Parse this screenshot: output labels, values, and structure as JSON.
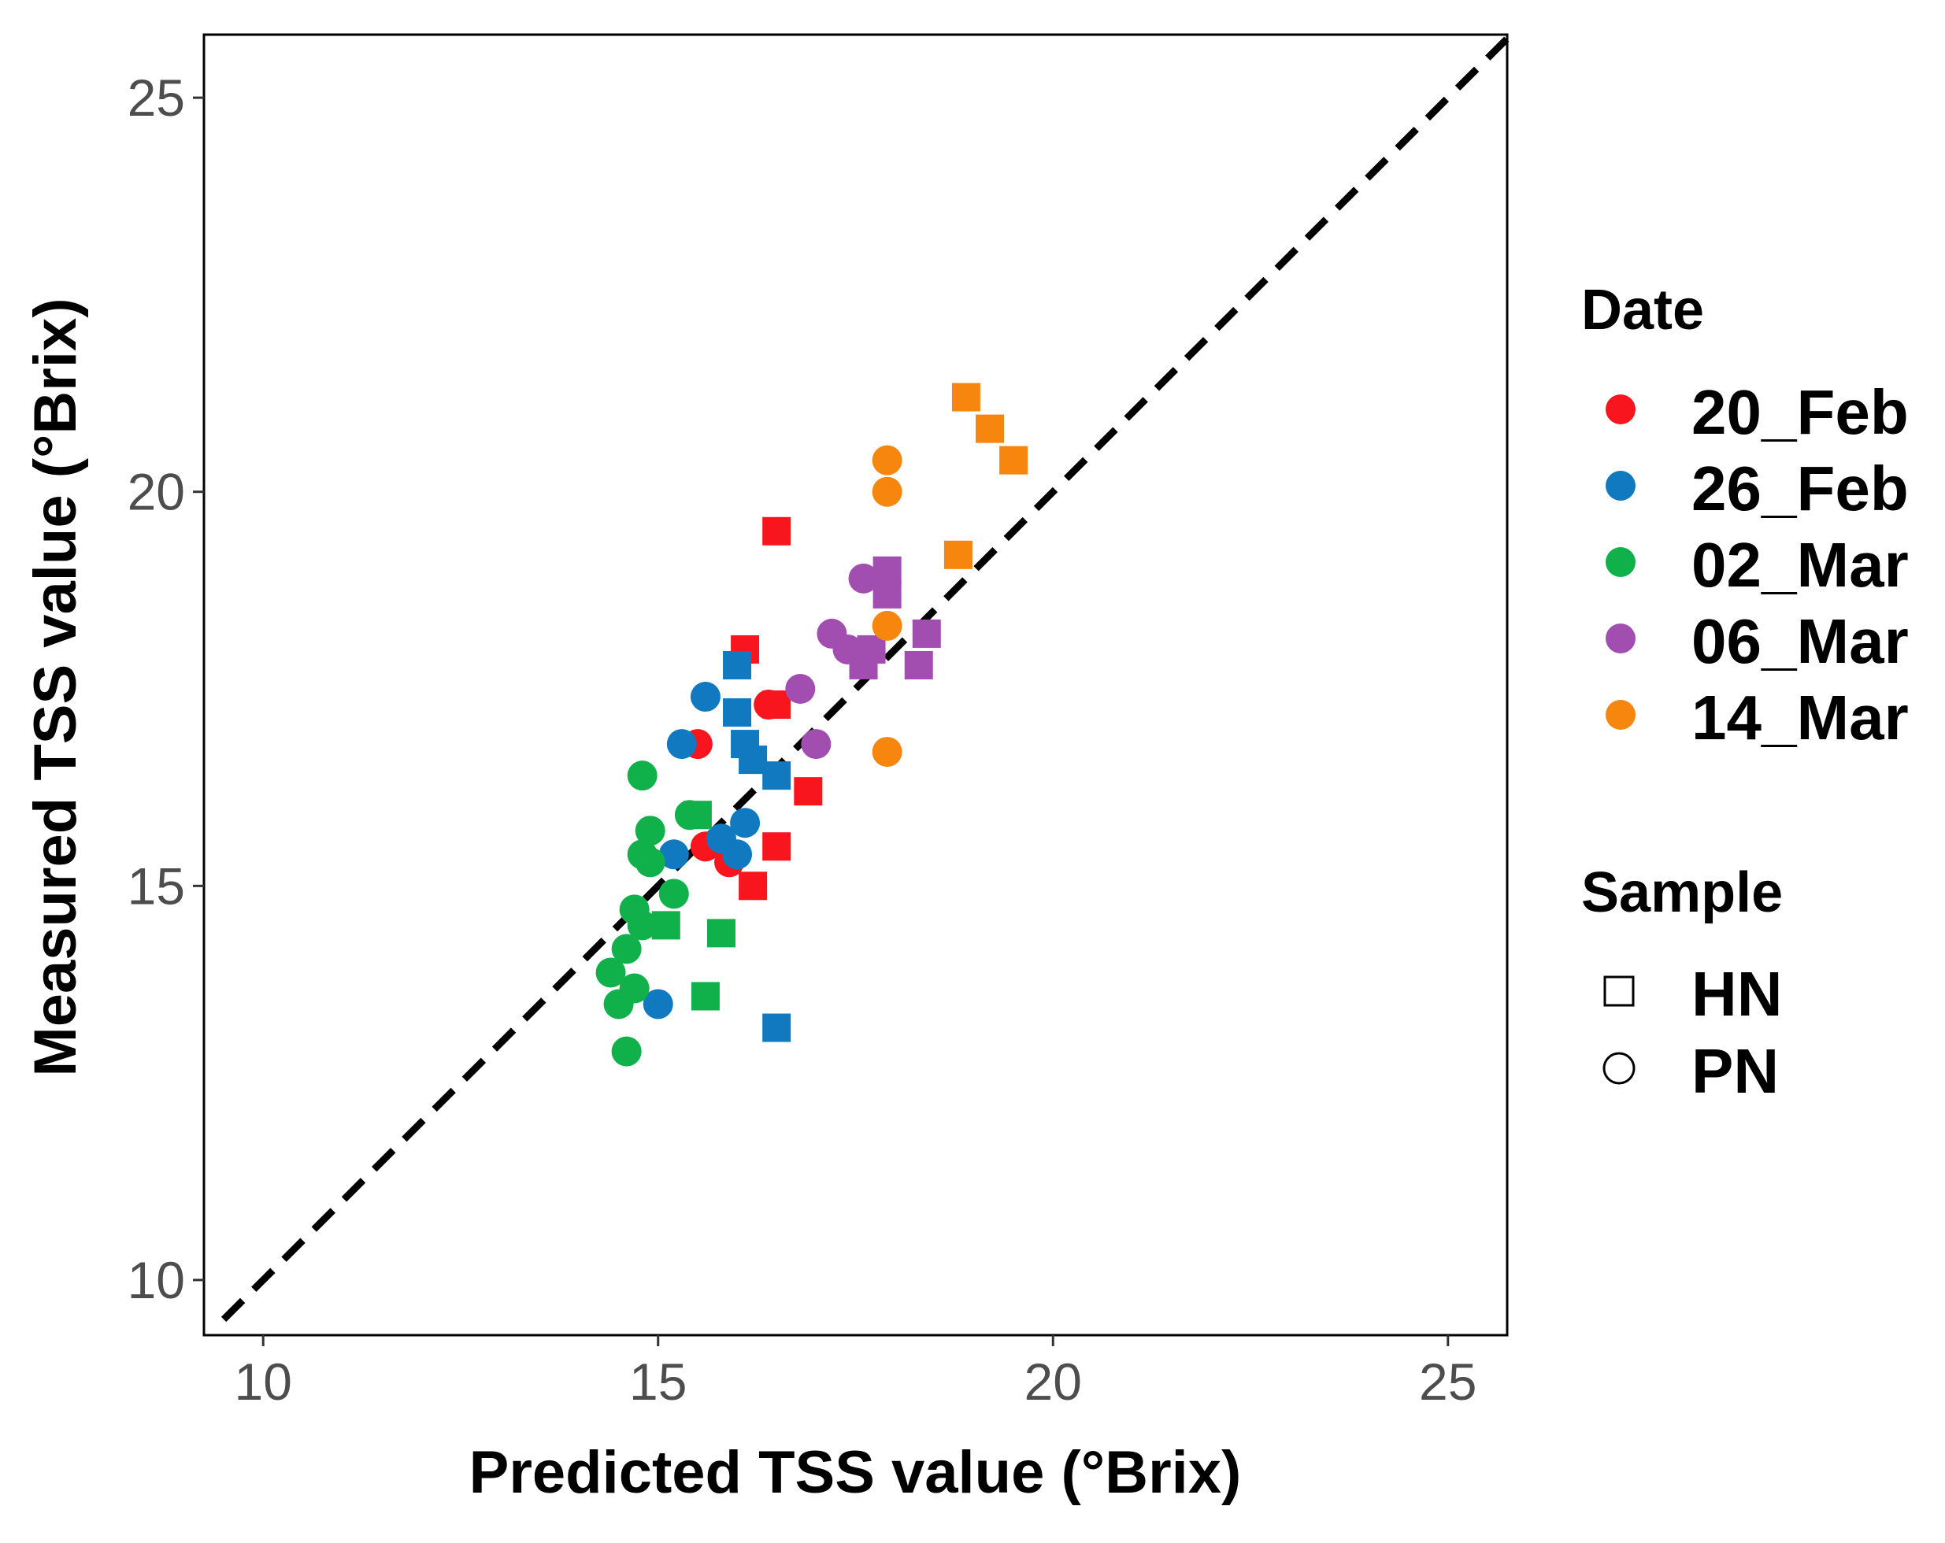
{
  "chart_data": {
    "type": "scatter",
    "title": "",
    "xlabel": "Predicted TSS value (°Brix)",
    "ylabel": "Measured TSS value (°Brix)",
    "xlim": [
      9.25,
      25.75
    ],
    "ylim": [
      9.3,
      25.8
    ],
    "x_ticks": [
      "10",
      "15",
      "20",
      "25"
    ],
    "y_ticks": [
      "10",
      "15",
      "20",
      "25"
    ],
    "reference_line": {
      "style": "dashed",
      "color": "#000000",
      "from": [
        9.5,
        9.5
      ],
      "to": [
        25.75,
        25.75
      ]
    },
    "legend_position": "right",
    "legends": {
      "color": {
        "title": "Date"
      },
      "shape": {
        "title": "Sample"
      }
    },
    "dates": [
      {
        "label": "20_Feb",
        "color": "#f8151d"
      },
      {
        "label": "26_Feb",
        "color": "#1079c0"
      },
      {
        "label": "02_Mar",
        "color": "#10b04a"
      },
      {
        "label": "06_Mar",
        "color": "#a24db0"
      },
      {
        "label": "14_Mar",
        "color": "#f7860f"
      }
    ],
    "samples": [
      {
        "label": "HN",
        "shape": "square"
      },
      {
        "label": "PN",
        "shape": "circle"
      }
    ],
    "points": [
      {
        "date": "20_Feb",
        "sample": "HN",
        "x": 16.5,
        "y": 19.5
      },
      {
        "date": "20_Feb",
        "sample": "HN",
        "x": 16.1,
        "y": 18.0
      },
      {
        "date": "20_Feb",
        "sample": "HN",
        "x": 16.5,
        "y": 17.3
      },
      {
        "date": "20_Feb",
        "sample": "HN",
        "x": 16.9,
        "y": 16.2
      },
      {
        "date": "20_Feb",
        "sample": "HN",
        "x": 16.5,
        "y": 15.5
      },
      {
        "date": "20_Feb",
        "sample": "HN",
        "x": 16.2,
        "y": 15.0
      },
      {
        "date": "20_Feb",
        "sample": "PN",
        "x": 15.5,
        "y": 16.8
      },
      {
        "date": "20_Feb",
        "sample": "PN",
        "x": 15.6,
        "y": 15.5
      },
      {
        "date": "20_Feb",
        "sample": "PN",
        "x": 15.9,
        "y": 15.3
      },
      {
        "date": "20_Feb",
        "sample": "PN",
        "x": 16.4,
        "y": 17.3
      },
      {
        "date": "26_Feb",
        "sample": "HN",
        "x": 16.0,
        "y": 17.8
      },
      {
        "date": "26_Feb",
        "sample": "HN",
        "x": 16.0,
        "y": 17.2
      },
      {
        "date": "26_Feb",
        "sample": "HN",
        "x": 16.1,
        "y": 16.8
      },
      {
        "date": "26_Feb",
        "sample": "HN",
        "x": 16.2,
        "y": 16.6
      },
      {
        "date": "26_Feb",
        "sample": "HN",
        "x": 16.5,
        "y": 16.4
      },
      {
        "date": "26_Feb",
        "sample": "HN",
        "x": 16.5,
        "y": 13.2
      },
      {
        "date": "26_Feb",
        "sample": "PN",
        "x": 15.6,
        "y": 17.4
      },
      {
        "date": "26_Feb",
        "sample": "PN",
        "x": 15.3,
        "y": 16.8
      },
      {
        "date": "26_Feb",
        "sample": "PN",
        "x": 16.1,
        "y": 15.8
      },
      {
        "date": "26_Feb",
        "sample": "PN",
        "x": 15.8,
        "y": 15.6
      },
      {
        "date": "26_Feb",
        "sample": "PN",
        "x": 15.2,
        "y": 15.4
      },
      {
        "date": "26_Feb",
        "sample": "PN",
        "x": 16.0,
        "y": 15.4
      },
      {
        "date": "26_Feb",
        "sample": "PN",
        "x": 15.0,
        "y": 13.5
      },
      {
        "date": "02_Mar",
        "sample": "HN",
        "x": 15.5,
        "y": 15.9
      },
      {
        "date": "02_Mar",
        "sample": "HN",
        "x": 15.1,
        "y": 14.5
      },
      {
        "date": "02_Mar",
        "sample": "HN",
        "x": 15.8,
        "y": 14.4
      },
      {
        "date": "02_Mar",
        "sample": "HN",
        "x": 15.6,
        "y": 13.6
      },
      {
        "date": "02_Mar",
        "sample": "PN",
        "x": 14.8,
        "y": 16.4
      },
      {
        "date": "02_Mar",
        "sample": "PN",
        "x": 14.9,
        "y": 15.7
      },
      {
        "date": "02_Mar",
        "sample": "PN",
        "x": 15.4,
        "y": 15.9
      },
      {
        "date": "02_Mar",
        "sample": "PN",
        "x": 14.8,
        "y": 15.4
      },
      {
        "date": "02_Mar",
        "sample": "PN",
        "x": 14.9,
        "y": 15.3
      },
      {
        "date": "02_Mar",
        "sample": "PN",
        "x": 15.2,
        "y": 14.9
      },
      {
        "date": "02_Mar",
        "sample": "PN",
        "x": 14.7,
        "y": 14.7
      },
      {
        "date": "02_Mar",
        "sample": "PN",
        "x": 14.8,
        "y": 14.5
      },
      {
        "date": "02_Mar",
        "sample": "PN",
        "x": 14.6,
        "y": 14.2
      },
      {
        "date": "02_Mar",
        "sample": "PN",
        "x": 14.4,
        "y": 13.9
      },
      {
        "date": "02_Mar",
        "sample": "PN",
        "x": 14.7,
        "y": 13.7
      },
      {
        "date": "02_Mar",
        "sample": "PN",
        "x": 14.5,
        "y": 13.5
      },
      {
        "date": "02_Mar",
        "sample": "PN",
        "x": 14.6,
        "y": 12.9
      },
      {
        "date": "06_Mar",
        "sample": "HN",
        "x": 17.9,
        "y": 19.0
      },
      {
        "date": "06_Mar",
        "sample": "HN",
        "x": 17.9,
        "y": 18.7
      },
      {
        "date": "06_Mar",
        "sample": "HN",
        "x": 18.4,
        "y": 18.2
      },
      {
        "date": "06_Mar",
        "sample": "HN",
        "x": 17.7,
        "y": 18.0
      },
      {
        "date": "06_Mar",
        "sample": "HN",
        "x": 18.3,
        "y": 17.8
      },
      {
        "date": "06_Mar",
        "sample": "HN",
        "x": 17.6,
        "y": 17.8
      },
      {
        "date": "06_Mar",
        "sample": "PN",
        "x": 17.6,
        "y": 18.9
      },
      {
        "date": "06_Mar",
        "sample": "PN",
        "x": 17.2,
        "y": 18.2
      },
      {
        "date": "06_Mar",
        "sample": "PN",
        "x": 17.4,
        "y": 18.0
      },
      {
        "date": "06_Mar",
        "sample": "PN",
        "x": 16.8,
        "y": 17.5
      },
      {
        "date": "06_Mar",
        "sample": "PN",
        "x": 17.0,
        "y": 16.8
      },
      {
        "date": "14_Mar",
        "sample": "HN",
        "x": 18.9,
        "y": 21.2
      },
      {
        "date": "14_Mar",
        "sample": "HN",
        "x": 19.2,
        "y": 20.8
      },
      {
        "date": "14_Mar",
        "sample": "HN",
        "x": 19.5,
        "y": 20.4
      },
      {
        "date": "14_Mar",
        "sample": "HN",
        "x": 18.8,
        "y": 19.2
      },
      {
        "date": "14_Mar",
        "sample": "PN",
        "x": 17.9,
        "y": 20.4
      },
      {
        "date": "14_Mar",
        "sample": "PN",
        "x": 17.9,
        "y": 20.0
      },
      {
        "date": "14_Mar",
        "sample": "PN",
        "x": 17.9,
        "y": 18.3
      },
      {
        "date": "14_Mar",
        "sample": "PN",
        "x": 17.9,
        "y": 16.7
      }
    ]
  }
}
